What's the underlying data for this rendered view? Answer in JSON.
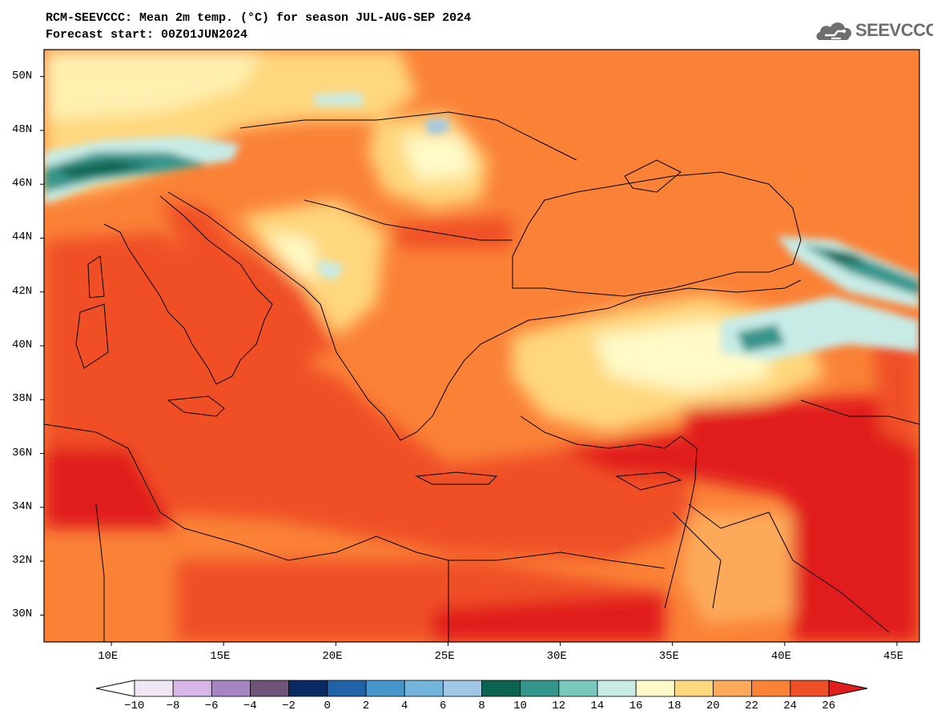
{
  "header": {
    "title_line1": "RCM-SEEVCCC: Mean 2m temp. (°C) for season JUL-AUG-SEP 2024",
    "title_line2": "Forecast start: 00Z01JUN2024"
  },
  "logo": {
    "text": "SEEVCCC",
    "icon": "cloud-icon"
  },
  "map": {
    "lat_labels": [
      "50N",
      "48N",
      "46N",
      "44N",
      "42N",
      "40N",
      "38N",
      "36N",
      "34N",
      "32N",
      "30N"
    ],
    "lon_labels": [
      "10E",
      "15E",
      "20E",
      "25E",
      "30E",
      "35E",
      "40E",
      "45E"
    ],
    "lat_range": [
      29,
      51
    ],
    "lon_range": [
      7,
      46
    ]
  },
  "colorbar": {
    "labels": [
      "−10",
      "−8",
      "−6",
      "−4",
      "−2",
      "0",
      "2",
      "4",
      "6",
      "8",
      "10",
      "12",
      "14",
      "16",
      "18",
      "20",
      "22",
      "24",
      "26"
    ],
    "colors": [
      "#ffffff",
      "#f0e6f5",
      "#d7b7e6",
      "#a586c2",
      "#6e5478",
      "#0a2a64",
      "#2064a8",
      "#4696cc",
      "#73b4dc",
      "#a0c8e6",
      "#0a6450",
      "#37968c",
      "#78c8be",
      "#c8ebe6",
      "#fffac8",
      "#ffd77d",
      "#fcaa5a",
      "#fa8237",
      "#f05028",
      "#e11e1e"
    ]
  }
}
